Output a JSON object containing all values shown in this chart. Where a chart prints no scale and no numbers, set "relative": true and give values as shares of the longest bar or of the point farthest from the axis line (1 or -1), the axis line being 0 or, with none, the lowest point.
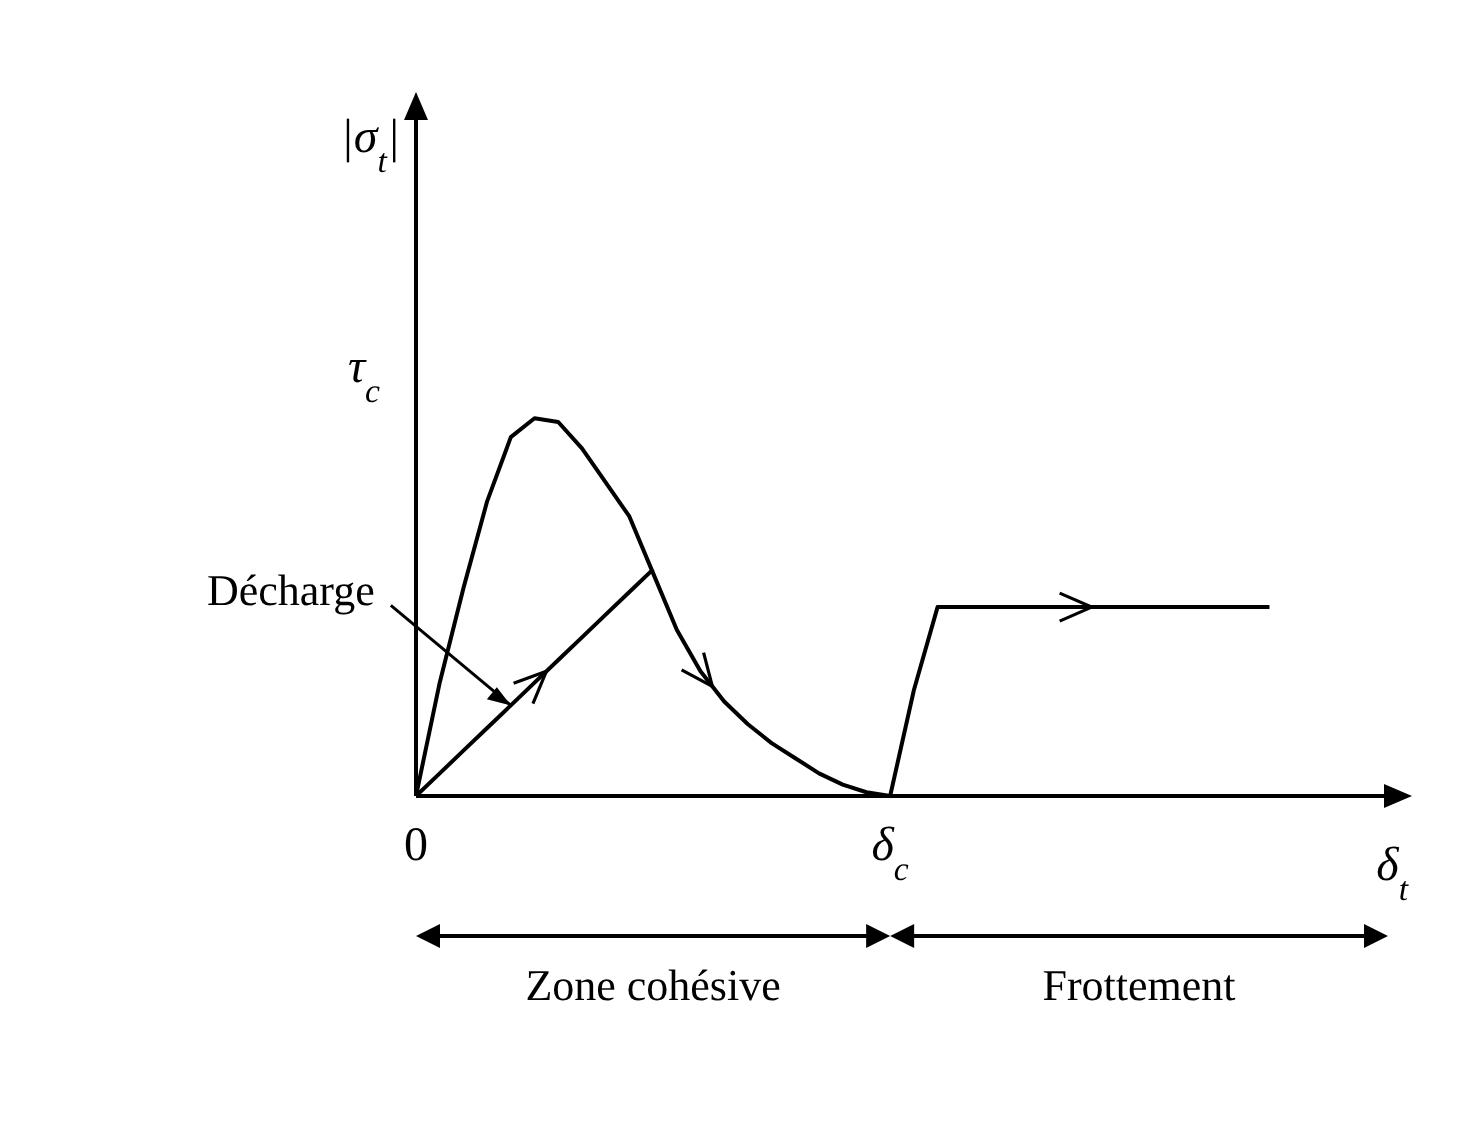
{
  "chart_data": {
    "type": "line",
    "relative": true,
    "xlabel": "δ$_{t}$",
    "ylabel": "|σ$_{t}$|",
    "categories": [
      "0",
      null,
      null,
      null,
      null,
      null,
      null,
      null,
      null,
      null,
      null,
      null,
      null,
      null,
      null,
      null,
      null,
      null,
      null,
      null,
      "δ$_{c}$",
      null,
      null,
      null,
      null,
      null,
      null,
      null,
      null,
      null,
      null,
      null,
      null,
      null,
      null,
      null,
      null,
      null,
      null,
      null,
      null,
      null
    ],
    "series": [
      {
        "color": "#000000",
        "values": [
          0,
          0.3,
          0.55,
          0.78,
          0.95,
          1,
          0.99,
          0.92,
          0.83,
          0.74,
          0.59,
          0.44,
          0.33,
          0.25,
          0.19,
          0.14,
          0.1,
          0.06,
          0.03,
          0.01,
          0,
          null,
          null,
          null,
          null,
          null,
          null,
          null,
          null,
          null,
          null,
          null,
          null,
          null,
          null,
          null,
          null,
          null,
          null,
          null,
          null,
          null
        ]
      },
      {
        "color": "#000000",
        "values": [
          0,
          0.06,
          0.12,
          0.18,
          0.24,
          0.3,
          0.36,
          0.42,
          0.48,
          0.54,
          0.6,
          null,
          null,
          null,
          null,
          null,
          null,
          null,
          null,
          null,
          null,
          null,
          null,
          null,
          null,
          null,
          null,
          null,
          null,
          null,
          null,
          null,
          null,
          null,
          null,
          null,
          null,
          null,
          null,
          null,
          null,
          null
        ]
      },
      {
        "color": "#000000",
        "values": [
          null,
          null,
          null,
          null,
          null,
          null,
          null,
          null,
          null,
          null,
          null,
          null,
          null,
          null,
          null,
          null,
          null,
          null,
          null,
          null,
          0,
          0.28,
          0.5,
          0.5,
          0.5,
          0.5,
          0.5,
          0.5,
          0.5,
          0.5,
          0.5,
          0.5,
          0.5,
          0.5,
          0.5,
          0.5,
          0.5,
          null,
          null,
          null,
          null,
          null
        ]
      }
    ],
    "annotations": [
      "τ$_{c}$",
      "Décharge",
      "Zone cohésive",
      "Frottement"
    ],
    "marker": "none",
    "line_style": "solid",
    "legend": false,
    "grid": false
  }
}
